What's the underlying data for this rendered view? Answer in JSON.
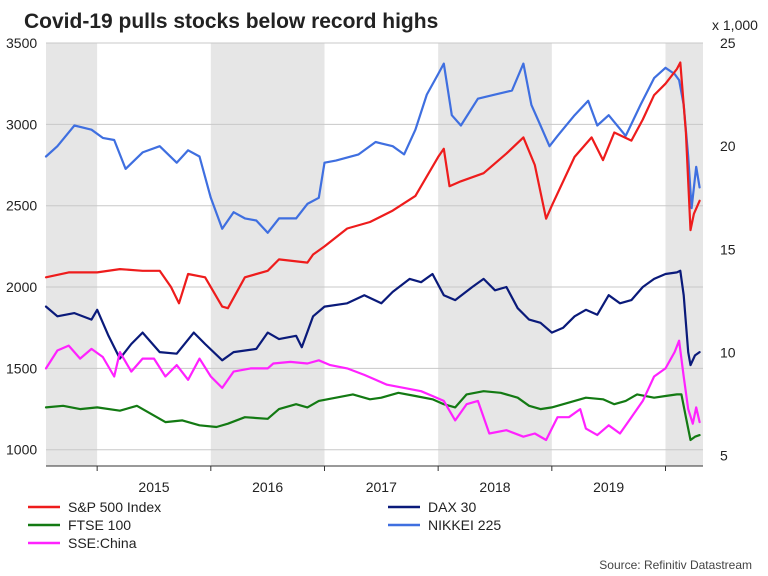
{
  "chart_data": {
    "type": "line",
    "title": "Covid-19 pulls stocks below record highs",
    "source": "Source: Refinitiv Datastream",
    "left_axis": {
      "ticks": [
        1000,
        1500,
        2000,
        2500,
        3000,
        3500
      ],
      "range": [
        900,
        3500
      ]
    },
    "right_axis": {
      "unit_label": "x 1,000",
      "ticks": [
        5,
        10,
        15,
        20,
        25
      ],
      "range": [
        4.5,
        25
      ]
    },
    "x_axis": {
      "range": [
        2014.55,
        2020.33
      ],
      "year_labels": [
        "2015",
        "2016",
        "2017",
        "2018",
        "2019"
      ],
      "shaded_years": [
        [
          2014.55,
          2015.0
        ],
        [
          2016.0,
          2017.0
        ],
        [
          2018.0,
          2019.0
        ],
        [
          2020.0,
          2020.33
        ]
      ]
    },
    "legend": [
      "S&P 500 Index",
      "DAX 30",
      "FTSE 100",
      "NIKKEI 225",
      "SSE:China"
    ],
    "series": [
      {
        "name": "S&P 500 Index",
        "axis": "left",
        "color": "#ee1c1c",
        "points": [
          [
            2014.55,
            2060
          ],
          [
            2014.75,
            2090
          ],
          [
            2015.0,
            2090
          ],
          [
            2015.2,
            2110
          ],
          [
            2015.4,
            2100
          ],
          [
            2015.55,
            2100
          ],
          [
            2015.65,
            2000
          ],
          [
            2015.72,
            1900
          ],
          [
            2015.8,
            2080
          ],
          [
            2015.95,
            2060
          ],
          [
            2016.1,
            1880
          ],
          [
            2016.15,
            1870
          ],
          [
            2016.3,
            2060
          ],
          [
            2016.5,
            2100
          ],
          [
            2016.6,
            2170
          ],
          [
            2016.85,
            2150
          ],
          [
            2016.9,
            2200
          ],
          [
            2017.0,
            2250
          ],
          [
            2017.2,
            2360
          ],
          [
            2017.4,
            2400
          ],
          [
            2017.6,
            2470
          ],
          [
            2017.8,
            2560
          ],
          [
            2018.0,
            2800
          ],
          [
            2018.05,
            2850
          ],
          [
            2018.1,
            2620
          ],
          [
            2018.2,
            2650
          ],
          [
            2018.4,
            2700
          ],
          [
            2018.6,
            2820
          ],
          [
            2018.75,
            2920
          ],
          [
            2018.85,
            2750
          ],
          [
            2018.95,
            2420
          ],
          [
            2019.0,
            2500
          ],
          [
            2019.2,
            2800
          ],
          [
            2019.35,
            2920
          ],
          [
            2019.45,
            2780
          ],
          [
            2019.55,
            2950
          ],
          [
            2019.7,
            2900
          ],
          [
            2019.8,
            3030
          ],
          [
            2019.9,
            3180
          ],
          [
            2020.0,
            3250
          ],
          [
            2020.1,
            3340
          ],
          [
            2020.13,
            3380
          ],
          [
            2020.18,
            2950
          ],
          [
            2020.22,
            2350
          ],
          [
            2020.25,
            2450
          ],
          [
            2020.3,
            2530
          ]
        ]
      },
      {
        "name": "DAX 30",
        "axis": "left",
        "color": "#0a1a7a",
        "points": [
          [
            2014.55,
            1880
          ],
          [
            2014.65,
            1820
          ],
          [
            2014.8,
            1840
          ],
          [
            2014.95,
            1800
          ],
          [
            2015.0,
            1860
          ],
          [
            2015.1,
            1700
          ],
          [
            2015.2,
            1560
          ],
          [
            2015.3,
            1650
          ],
          [
            2015.4,
            1720
          ],
          [
            2015.55,
            1600
          ],
          [
            2015.7,
            1590
          ],
          [
            2015.85,
            1720
          ],
          [
            2015.95,
            1650
          ],
          [
            2016.1,
            1550
          ],
          [
            2016.2,
            1600
          ],
          [
            2016.4,
            1620
          ],
          [
            2016.5,
            1720
          ],
          [
            2016.6,
            1680
          ],
          [
            2016.75,
            1700
          ],
          [
            2016.8,
            1630
          ],
          [
            2016.9,
            1820
          ],
          [
            2017.0,
            1880
          ],
          [
            2017.2,
            1900
          ],
          [
            2017.35,
            1950
          ],
          [
            2017.5,
            1900
          ],
          [
            2017.6,
            1970
          ],
          [
            2017.75,
            2050
          ],
          [
            2017.85,
            2030
          ],
          [
            2017.95,
            2080
          ],
          [
            2018.05,
            1950
          ],
          [
            2018.15,
            1920
          ],
          [
            2018.3,
            2000
          ],
          [
            2018.4,
            2050
          ],
          [
            2018.5,
            1980
          ],
          [
            2018.6,
            2000
          ],
          [
            2018.7,
            1870
          ],
          [
            2018.8,
            1800
          ],
          [
            2018.9,
            1780
          ],
          [
            2019.0,
            1720
          ],
          [
            2019.1,
            1750
          ],
          [
            2019.2,
            1820
          ],
          [
            2019.3,
            1860
          ],
          [
            2019.4,
            1830
          ],
          [
            2019.5,
            1950
          ],
          [
            2019.6,
            1900
          ],
          [
            2019.7,
            1920
          ],
          [
            2019.8,
            2000
          ],
          [
            2019.9,
            2050
          ],
          [
            2020.0,
            2080
          ],
          [
            2020.1,
            2090
          ],
          [
            2020.13,
            2100
          ],
          [
            2020.16,
            1950
          ],
          [
            2020.2,
            1600
          ],
          [
            2020.22,
            1520
          ],
          [
            2020.26,
            1580
          ],
          [
            2020.3,
            1600
          ]
        ]
      },
      {
        "name": "FTSE 100",
        "axis": "left",
        "color": "#137a13",
        "points": [
          [
            2014.55,
            1260
          ],
          [
            2014.7,
            1270
          ],
          [
            2014.85,
            1250
          ],
          [
            2015.0,
            1260
          ],
          [
            2015.2,
            1240
          ],
          [
            2015.35,
            1270
          ],
          [
            2015.5,
            1210
          ],
          [
            2015.6,
            1170
          ],
          [
            2015.75,
            1180
          ],
          [
            2015.9,
            1150
          ],
          [
            2016.05,
            1140
          ],
          [
            2016.15,
            1160
          ],
          [
            2016.3,
            1200
          ],
          [
            2016.5,
            1190
          ],
          [
            2016.6,
            1250
          ],
          [
            2016.75,
            1280
          ],
          [
            2016.85,
            1260
          ],
          [
            2016.95,
            1300
          ],
          [
            2017.1,
            1320
          ],
          [
            2017.25,
            1340
          ],
          [
            2017.4,
            1310
          ],
          [
            2017.5,
            1320
          ],
          [
            2017.65,
            1350
          ],
          [
            2017.8,
            1330
          ],
          [
            2017.95,
            1310
          ],
          [
            2018.05,
            1280
          ],
          [
            2018.15,
            1260
          ],
          [
            2018.25,
            1340
          ],
          [
            2018.4,
            1360
          ],
          [
            2018.55,
            1350
          ],
          [
            2018.7,
            1320
          ],
          [
            2018.8,
            1270
          ],
          [
            2018.9,
            1250
          ],
          [
            2019.0,
            1260
          ],
          [
            2019.15,
            1290
          ],
          [
            2019.3,
            1320
          ],
          [
            2019.45,
            1310
          ],
          [
            2019.55,
            1280
          ],
          [
            2019.65,
            1300
          ],
          [
            2019.75,
            1340
          ],
          [
            2019.9,
            1320
          ],
          [
            2020.0,
            1330
          ],
          [
            2020.1,
            1340
          ],
          [
            2020.14,
            1340
          ],
          [
            2020.18,
            1200
          ],
          [
            2020.22,
            1060
          ],
          [
            2020.26,
            1080
          ],
          [
            2020.3,
            1090
          ]
        ]
      },
      {
        "name": "NIKKEI 225",
        "axis": "right",
        "color": "#3f6fe0",
        "points": [
          [
            2014.55,
            19.5
          ],
          [
            2014.65,
            20.0
          ],
          [
            2014.8,
            21.0
          ],
          [
            2014.95,
            20.8
          ],
          [
            2015.05,
            20.4
          ],
          [
            2015.15,
            20.3
          ],
          [
            2015.25,
            18.9
          ],
          [
            2015.4,
            19.7
          ],
          [
            2015.55,
            20.0
          ],
          [
            2015.7,
            19.2
          ],
          [
            2015.8,
            19.8
          ],
          [
            2015.9,
            19.5
          ],
          [
            2016.0,
            17.5
          ],
          [
            2016.1,
            16.0
          ],
          [
            2016.2,
            16.8
          ],
          [
            2016.3,
            16.5
          ],
          [
            2016.4,
            16.4
          ],
          [
            2016.5,
            15.8
          ],
          [
            2016.6,
            16.5
          ],
          [
            2016.75,
            16.5
          ],
          [
            2016.85,
            17.2
          ],
          [
            2016.95,
            17.5
          ],
          [
            2017.0,
            19.2
          ],
          [
            2017.1,
            19.3
          ],
          [
            2017.3,
            19.6
          ],
          [
            2017.45,
            20.2
          ],
          [
            2017.6,
            20.0
          ],
          [
            2017.7,
            19.6
          ],
          [
            2017.8,
            20.8
          ],
          [
            2017.9,
            22.5
          ],
          [
            2018.0,
            23.5
          ],
          [
            2018.05,
            24.0
          ],
          [
            2018.12,
            21.5
          ],
          [
            2018.2,
            21.0
          ],
          [
            2018.35,
            22.3
          ],
          [
            2018.5,
            22.5
          ],
          [
            2018.65,
            22.7
          ],
          [
            2018.75,
            24.0
          ],
          [
            2018.82,
            22.0
          ],
          [
            2018.9,
            21.0
          ],
          [
            2018.98,
            20.0
          ],
          [
            2019.05,
            20.5
          ],
          [
            2019.2,
            21.5
          ],
          [
            2019.32,
            22.2
          ],
          [
            2019.4,
            21.0
          ],
          [
            2019.5,
            21.5
          ],
          [
            2019.65,
            20.5
          ],
          [
            2019.78,
            22.0
          ],
          [
            2019.9,
            23.3
          ],
          [
            2020.0,
            23.8
          ],
          [
            2020.08,
            23.5
          ],
          [
            2020.12,
            23.2
          ],
          [
            2020.16,
            22.0
          ],
          [
            2020.2,
            19.5
          ],
          [
            2020.23,
            17.0
          ],
          [
            2020.27,
            19.0
          ],
          [
            2020.3,
            18.0
          ]
        ]
      },
      {
        "name": "SSE:China",
        "axis": "left",
        "color": "#ff22ff",
        "points": [
          [
            2014.55,
            1500
          ],
          [
            2014.65,
            1610
          ],
          [
            2014.75,
            1640
          ],
          [
            2014.85,
            1560
          ],
          [
            2014.95,
            1620
          ],
          [
            2015.05,
            1570
          ],
          [
            2015.15,
            1450
          ],
          [
            2015.2,
            1600
          ],
          [
            2015.3,
            1480
          ],
          [
            2015.4,
            1560
          ],
          [
            2015.5,
            1560
          ],
          [
            2015.6,
            1450
          ],
          [
            2015.7,
            1520
          ],
          [
            2015.8,
            1430
          ],
          [
            2015.9,
            1560
          ],
          [
            2016.0,
            1450
          ],
          [
            2016.1,
            1380
          ],
          [
            2016.2,
            1480
          ],
          [
            2016.35,
            1500
          ],
          [
            2016.5,
            1500
          ],
          [
            2016.55,
            1530
          ],
          [
            2016.7,
            1540
          ],
          [
            2016.85,
            1530
          ],
          [
            2016.95,
            1550
          ],
          [
            2017.05,
            1520
          ],
          [
            2017.2,
            1500
          ],
          [
            2017.35,
            1460
          ],
          [
            2017.45,
            1430
          ],
          [
            2017.55,
            1400
          ],
          [
            2017.7,
            1380
          ],
          [
            2017.85,
            1360
          ],
          [
            2017.95,
            1330
          ],
          [
            2018.05,
            1300
          ],
          [
            2018.15,
            1180
          ],
          [
            2018.25,
            1280
          ],
          [
            2018.35,
            1300
          ],
          [
            2018.45,
            1100
          ],
          [
            2018.6,
            1120
          ],
          [
            2018.75,
            1080
          ],
          [
            2018.85,
            1100
          ],
          [
            2018.95,
            1060
          ],
          [
            2019.05,
            1200
          ],
          [
            2019.15,
            1200
          ],
          [
            2019.25,
            1250
          ],
          [
            2019.3,
            1130
          ],
          [
            2019.4,
            1090
          ],
          [
            2019.5,
            1150
          ],
          [
            2019.6,
            1100
          ],
          [
            2019.7,
            1200
          ],
          [
            2019.8,
            1300
          ],
          [
            2019.9,
            1450
          ],
          [
            2020.0,
            1500
          ],
          [
            2020.08,
            1600
          ],
          [
            2020.12,
            1670
          ],
          [
            2020.16,
            1450
          ],
          [
            2020.2,
            1250
          ],
          [
            2020.24,
            1160
          ],
          [
            2020.27,
            1260
          ],
          [
            2020.3,
            1170
          ]
        ]
      }
    ]
  }
}
